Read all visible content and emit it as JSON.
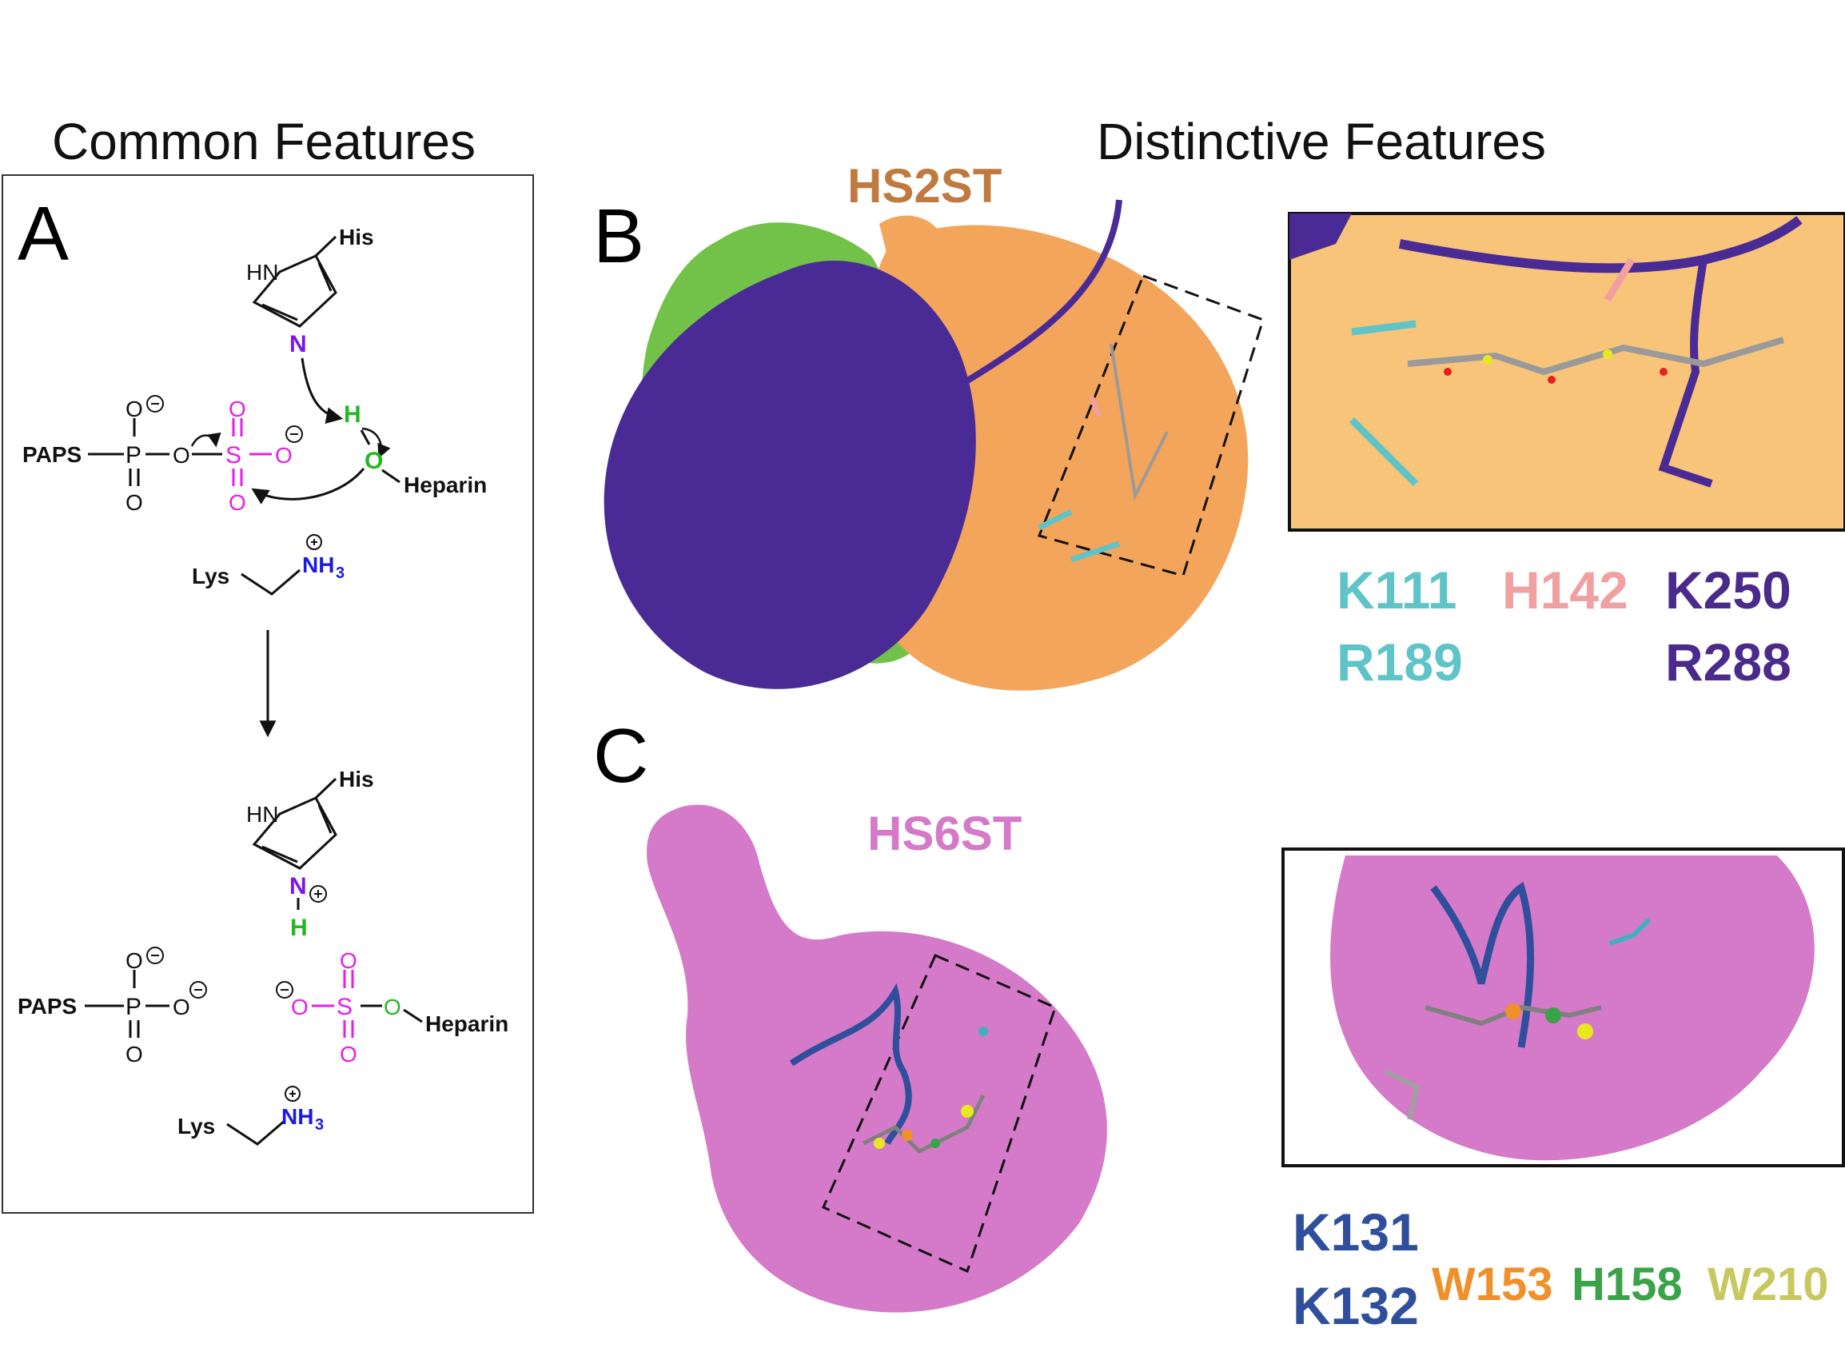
{
  "headings": {
    "common": "Common Features",
    "distinctive": "Distinctive Features"
  },
  "panels": {
    "A": "A",
    "B": "B",
    "C": "C"
  },
  "mechanism": {
    "his_top": "His",
    "hn_top": "HN",
    "n_top": "N",
    "h_transfer": "H",
    "o_heparin": "O",
    "heparin_top": "Heparin",
    "paps_top": "PAPS",
    "p_top": "P",
    "s_top": "S",
    "o_labels_top": [
      "O",
      "O",
      "O",
      "O",
      "O",
      "O"
    ],
    "lys_top": "Lys",
    "nh3_top": "NH",
    "nh3_sub": "3",
    "his_bottom": "His",
    "hn_bottom": "HN",
    "n_bottom": "N",
    "h_bottom": "H",
    "paps_bottom": "PAPS",
    "p_bottom": "P",
    "s_bottom": "S",
    "heparin_bottom": "Heparin",
    "lys_bottom": "Lys",
    "nh3_bottom": "NH",
    "nh3_bottom_sub": "3",
    "colors": {
      "purple": "#7f16e8",
      "green": "#22b822",
      "magenta": "#e81ee8",
      "blue": "#1a1ae6"
    }
  },
  "hs2st": {
    "name": "HS2ST",
    "name_color": "#c07a40",
    "residues": [
      {
        "label": "K111",
        "color": "#5ec4c8"
      },
      {
        "label": "H142",
        "color": "#f0a0a0"
      },
      {
        "label": "K250",
        "color": "#4a2a8a"
      },
      {
        "label": "R189",
        "color": "#5ec4c8"
      },
      {
        "label": "R288",
        "color": "#4a2a8a"
      }
    ]
  },
  "hs6st": {
    "name": "HS6ST",
    "name_color": "#d57ac8",
    "residues": [
      {
        "label": "K131",
        "color": "#2f4f9c"
      },
      {
        "label": "K132",
        "color": "#2f4f9c"
      },
      {
        "label": "W153",
        "color": "#f0902a"
      },
      {
        "label": "H158",
        "color": "#3aa34a"
      },
      {
        "label": "W210",
        "color": "#c8c860"
      }
    ]
  }
}
